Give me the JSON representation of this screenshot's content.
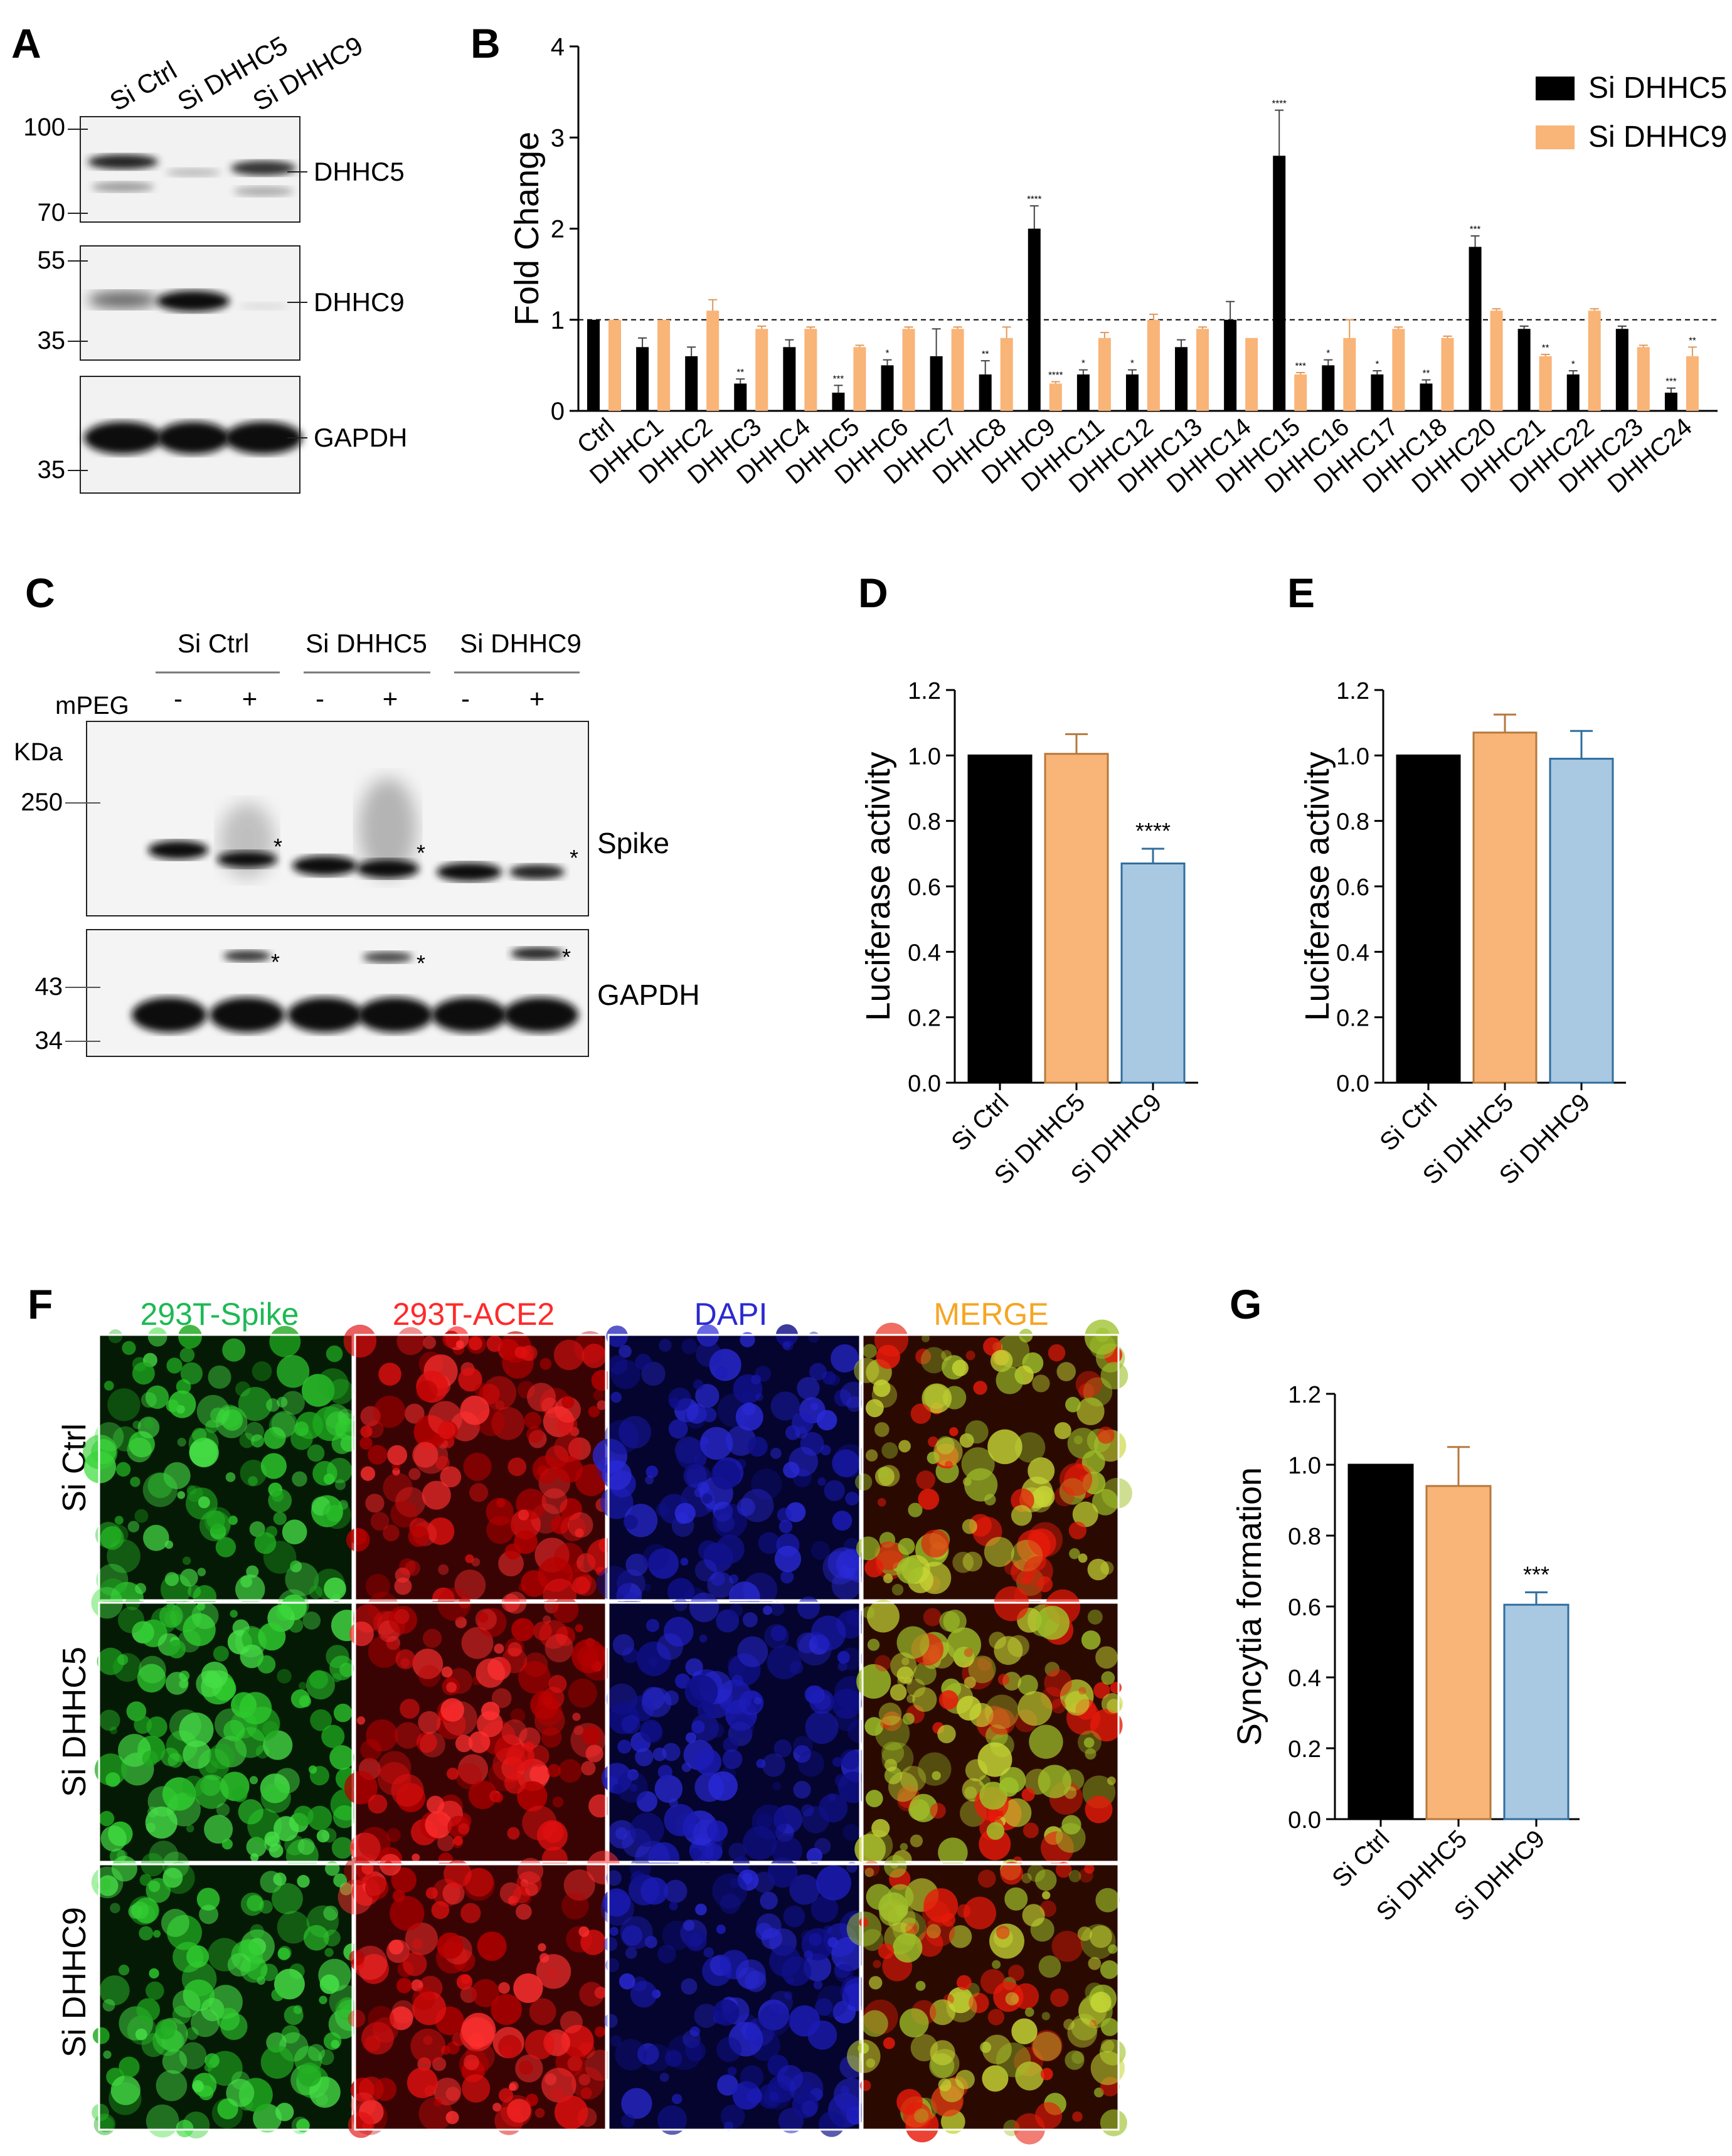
{
  "panels": {
    "A": {
      "letter": "A",
      "lane_labels": [
        "Si Ctrl",
        "Si DHHC5",
        "Si DHHC9"
      ],
      "blots": [
        {
          "label": "DHHC5",
          "markers": [
            "100",
            "70"
          ]
        },
        {
          "label": "DHHC9",
          "markers": [
            "55",
            "35"
          ]
        },
        {
          "label": "GAPDH",
          "markers": [
            "35"
          ]
        }
      ]
    },
    "B": {
      "letter": "B"
    },
    "C": {
      "letter": "C",
      "groups": [
        "Si Ctrl",
        "Si DHHC5",
        "Si DHHC9"
      ],
      "mpeg_label": "mPEG",
      "mpeg_signs": [
        "-",
        "+",
        "-",
        "+",
        "-",
        "+"
      ],
      "kda_label": "KDa",
      "markers_top": [
        "250"
      ],
      "markers_bottom": [
        "43",
        "34"
      ],
      "labels": [
        "Spike",
        "GAPDH"
      ],
      "asterisk": "*"
    },
    "D": {
      "letter": "D"
    },
    "E": {
      "letter": "E"
    },
    "F": {
      "letter": "F",
      "columns": [
        {
          "label": "293T-Spike",
          "color": "#1db954"
        },
        {
          "label": "293T-ACE2",
          "color": "#ff2a2a"
        },
        {
          "label": "DAPI",
          "color": "#2a2ad0"
        },
        {
          "label": "MERGE",
          "color": "#f5a623"
        }
      ],
      "rows": [
        "Si Ctrl",
        "Si DHHC5",
        "Si DHHC9"
      ]
    },
    "G": {
      "letter": "G"
    }
  },
  "chart_data": [
    {
      "panel": "B",
      "type": "bar",
      "ylabel": "Fold Change",
      "ylim": [
        0,
        4
      ],
      "yticks": [
        0,
        1,
        2,
        3,
        4
      ],
      "reference_line": 1,
      "legend_position": "top-right",
      "categories": [
        "Ctrl",
        "DHHC1",
        "DHHC2",
        "DHHC3",
        "DHHC4",
        "DHHC5",
        "DHHC6",
        "DHHC7",
        "DHHC8",
        "DHHC9",
        "DHHC11",
        "DHHC12",
        "DHHC13",
        "DHHC14",
        "DHHC15",
        "DHHC16",
        "DHHC17",
        "DHHC18",
        "DHHC20",
        "DHHC21",
        "DHHC22",
        "DHHC23",
        "DHHC24"
      ],
      "series": [
        {
          "name": "Si DHHC5",
          "color": "#000000",
          "values": [
            1.0,
            0.7,
            0.6,
            0.3,
            0.7,
            0.2,
            0.5,
            0.6,
            0.4,
            2.0,
            0.4,
            0.4,
            0.7,
            1.0,
            2.8,
            0.5,
            0.4,
            0.3,
            1.8,
            0.9,
            0.4,
            0.9,
            0.2
          ],
          "errors": [
            0,
            0.1,
            0.1,
            0.05,
            0.08,
            0.08,
            0.06,
            0.3,
            0.15,
            0.25,
            0.05,
            0.05,
            0.08,
            0.2,
            0.5,
            0.06,
            0.04,
            0.04,
            0.12,
            0.03,
            0.04,
            0.03,
            0.05
          ],
          "significance": [
            "",
            "",
            "",
            "**",
            "",
            "***",
            "*",
            "",
            "**",
            "****",
            "*",
            "*",
            "",
            "",
            "****",
            "*",
            "*",
            "**",
            "***",
            "",
            "*",
            "",
            "***"
          ]
        },
        {
          "name": "Si DHHC9",
          "color": "#f9b477",
          "values": [
            1.0,
            1.0,
            1.1,
            0.9,
            0.9,
            0.7,
            0.9,
            0.9,
            0.8,
            0.3,
            0.8,
            1.0,
            0.9,
            0.8,
            0.4,
            0.8,
            0.9,
            0.8,
            1.1,
            0.6,
            1.1,
            0.7,
            0.6
          ],
          "errors": [
            0,
            0,
            0.12,
            0.03,
            0.02,
            0.02,
            0.02,
            0.02,
            0.12,
            0.02,
            0.06,
            0.06,
            0.02,
            0,
            0.02,
            0.2,
            0.02,
            0.02,
            0.02,
            0.02,
            0.02,
            0.02,
            0.1
          ],
          "significance": [
            "",
            "",
            "",
            "",
            "",
            "",
            "",
            "",
            "",
            "****",
            "",
            "",
            "",
            "",
            "***",
            "",
            "",
            "",
            "",
            "**",
            "",
            "",
            "**"
          ]
        }
      ]
    },
    {
      "panel": "D",
      "type": "bar",
      "ylabel": "Luciferase activity",
      "ylim": [
        0,
        1.2
      ],
      "yticks": [
        "0.0",
        "0.2",
        "0.4",
        "0.6",
        "0.8",
        "1.0",
        "1.2"
      ],
      "categories": [
        "Si Ctrl",
        "Si DHHC5",
        "Si DHHC9"
      ],
      "values": [
        1.0,
        1.005,
        0.67
      ],
      "errors": [
        0,
        0.06,
        0.045
      ],
      "colors": [
        "#000000",
        "#f9b477",
        "#a9c8e1"
      ],
      "significance": [
        "",
        "",
        "****"
      ]
    },
    {
      "panel": "E",
      "type": "bar",
      "ylabel": "Luciferase activity",
      "ylim": [
        0,
        1.2
      ],
      "yticks": [
        "0.0",
        "0.2",
        "0.4",
        "0.6",
        "0.8",
        "1.0",
        "1.2"
      ],
      "categories": [
        "Si Ctrl",
        "Si DHHC5",
        "Si DHHC9"
      ],
      "values": [
        1.0,
        1.07,
        0.99
      ],
      "errors": [
        0,
        0.055,
        0.085
      ],
      "colors": [
        "#000000",
        "#f9b477",
        "#a9c8e1"
      ],
      "significance": [
        "",
        "",
        ""
      ]
    },
    {
      "panel": "G",
      "type": "bar",
      "ylabel": "Syncytia formation",
      "ylim": [
        0,
        1.2
      ],
      "yticks": [
        "0.0",
        "0.2",
        "0.4",
        "0.6",
        "0.8",
        "1.0",
        "1.2"
      ],
      "categories": [
        "Si Ctrl",
        "Si DHHC5",
        "Si DHHC9"
      ],
      "values": [
        1.0,
        0.94,
        0.605
      ],
      "errors": [
        0,
        0.11,
        0.035
      ],
      "colors": [
        "#000000",
        "#f9b477",
        "#a9c8e1"
      ],
      "significance": [
        "",
        "",
        "***"
      ]
    }
  ]
}
